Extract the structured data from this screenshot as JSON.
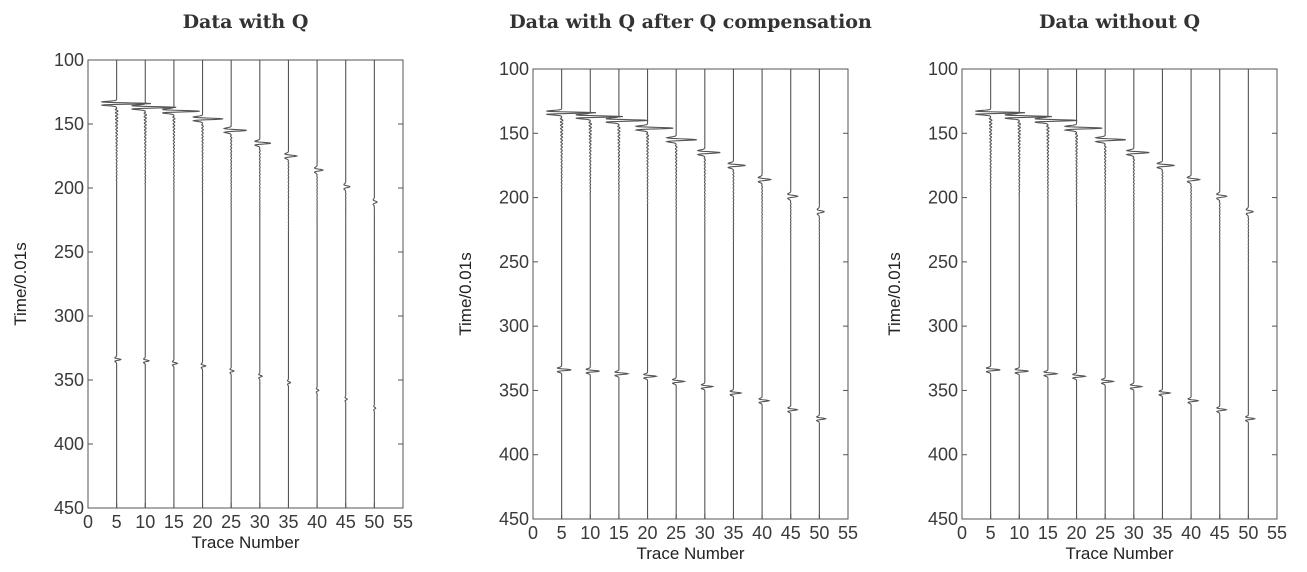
{
  "chart_data": [
    {
      "type": "line",
      "title": "Data with Q",
      "xlabel": "Trace Number",
      "ylabel": "Time/0.01s",
      "xlim": [
        0,
        55
      ],
      "ylim": [
        100,
        450
      ],
      "y_reversed": true,
      "xticks": [
        "0",
        "5",
        "10",
        "15",
        "20",
        "25",
        "30",
        "35",
        "40",
        "45",
        "50",
        "55"
      ],
      "yticks": [
        "100",
        "150",
        "200",
        "250",
        "300",
        "350",
        "400",
        "450"
      ],
      "grid": false,
      "trace_positions": [
        5,
        10,
        15,
        20,
        25,
        30,
        35,
        40,
        45,
        50
      ],
      "first_event_times": [
        134,
        137,
        140,
        146,
        155,
        165,
        175,
        186,
        199,
        211
      ],
      "first_event_amplitudes": [
        1.0,
        0.9,
        0.75,
        0.6,
        0.45,
        0.32,
        0.24,
        0.17,
        0.12,
        0.08
      ],
      "second_event_times": [
        334,
        335,
        337,
        339,
        343,
        347,
        352,
        358,
        365,
        372
      ],
      "second_event_amplitudes": [
        0.12,
        0.11,
        0.1,
        0.09,
        0.08,
        0.07,
        0.06,
        0.05,
        0.045,
        0.04
      ],
      "line_color": "#555555"
    },
    {
      "type": "line",
      "title": "Data with Q after Q compensation",
      "xlabel": "Trace Number",
      "ylabel": "Time/0.01s",
      "xlim": [
        0,
        55
      ],
      "ylim": [
        100,
        450
      ],
      "y_reversed": true,
      "xticks": [
        "0",
        "5",
        "10",
        "15",
        "20",
        "25",
        "30",
        "35",
        "40",
        "45",
        "50",
        "55"
      ],
      "yticks": [
        "100",
        "150",
        "200",
        "250",
        "300",
        "350",
        "400",
        "450"
      ],
      "grid": false,
      "trace_positions": [
        5,
        10,
        15,
        20,
        25,
        30,
        35,
        40,
        45,
        50
      ],
      "first_event_times": [
        134,
        137,
        140,
        146,
        155,
        165,
        175,
        186,
        199,
        211
      ],
      "first_event_amplitudes": [
        1.0,
        0.95,
        0.85,
        0.75,
        0.6,
        0.45,
        0.35,
        0.25,
        0.2,
        0.14
      ],
      "second_event_times": [
        334,
        335,
        337,
        339,
        343,
        347,
        352,
        358,
        365,
        372
      ],
      "second_event_amplitudes": [
        0.28,
        0.27,
        0.26,
        0.25,
        0.24,
        0.23,
        0.22,
        0.2,
        0.19,
        0.18
      ],
      "line_color": "#555555"
    },
    {
      "type": "line",
      "title": "Data without Q",
      "xlabel": "Trace Number",
      "ylabel": "Time/0.01s",
      "xlim": [
        0,
        55
      ],
      "ylim": [
        100,
        450
      ],
      "y_reversed": true,
      "xticks": [
        "0",
        "5",
        "10",
        "15",
        "20",
        "25",
        "30",
        "35",
        "40",
        "45",
        "50",
        "55"
      ],
      "yticks": [
        "100",
        "150",
        "200",
        "250",
        "300",
        "350",
        "400",
        "450"
      ],
      "grid": false,
      "trace_positions": [
        5,
        10,
        15,
        20,
        25,
        30,
        35,
        40,
        45,
        50
      ],
      "first_event_times": [
        134,
        137,
        140,
        146,
        155,
        165,
        175,
        186,
        199,
        211
      ],
      "first_event_amplitudes": [
        1.0,
        0.95,
        0.85,
        0.75,
        0.6,
        0.45,
        0.35,
        0.25,
        0.2,
        0.14
      ],
      "second_event_times": [
        334,
        335,
        337,
        339,
        343,
        347,
        352,
        358,
        365,
        372
      ],
      "second_event_amplitudes": [
        0.28,
        0.27,
        0.26,
        0.25,
        0.24,
        0.23,
        0.22,
        0.2,
        0.19,
        0.18
      ],
      "line_color": "#555555"
    }
  ]
}
